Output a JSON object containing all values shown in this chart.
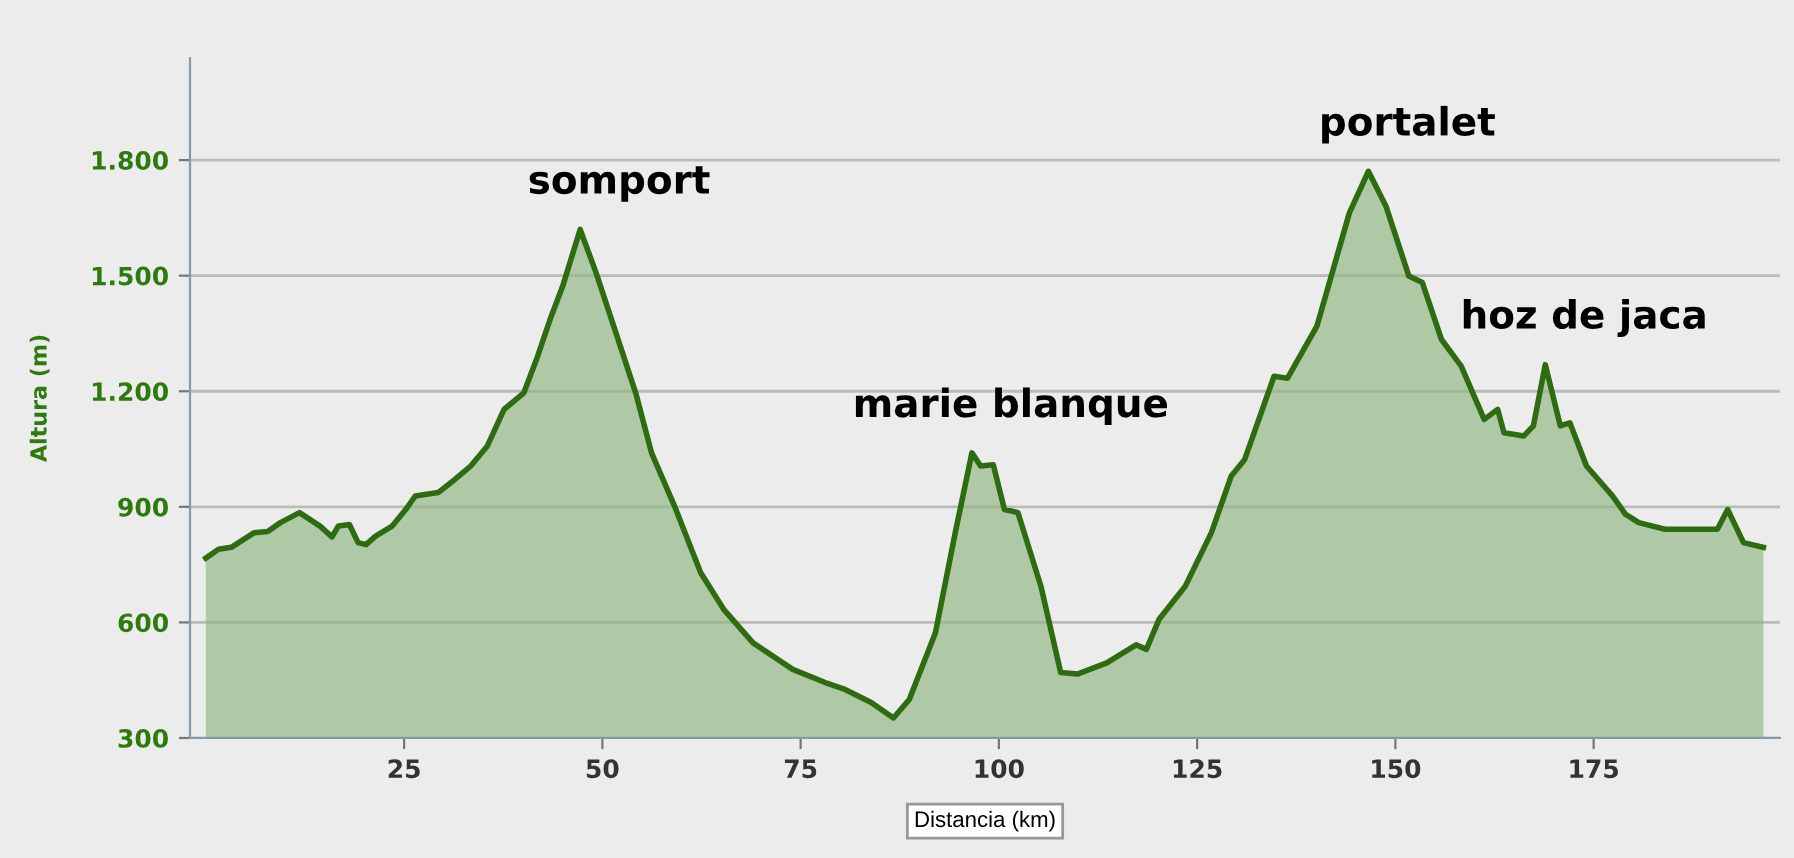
{
  "chart_data": {
    "type": "area",
    "ylabel": "Altura (m)",
    "xlabel": "Distancia (km)",
    "x": [
      0,
      1.6,
      3.2,
      6.1,
      7.8,
      9.4,
      11.8,
      14.4,
      15.9,
      16.7,
      18.1,
      19.2,
      20.2,
      21.4,
      23.5,
      25.2,
      26.4,
      29.3,
      31.4,
      33.4,
      35.5,
      37.6,
      40.1,
      41.7,
      43.4,
      45.0,
      47.2,
      49.2,
      51.7,
      54.2,
      56.2,
      59.1,
      62.4,
      65.3,
      69.0,
      74.0,
      78.1,
      80.6,
      83.9,
      86.7,
      88.7,
      92.0,
      94.5,
      96.6,
      97.7,
      99.3,
      100.7,
      102.4,
      105.3,
      107.8,
      109.9,
      113.6,
      117.3,
      118.6,
      120.2,
      123.5,
      126.8,
      129.3,
      131.0,
      134.7,
      136.4,
      140.1,
      144.2,
      146.6,
      148.8,
      151.7,
      153.4,
      155.8,
      158.3,
      161.2,
      162.9,
      163.7,
      166.2,
      167.4,
      168.9,
      170.8,
      172.0,
      174.1,
      177.4,
      179.0,
      180.7,
      184.0,
      187.3,
      190.6,
      191.9,
      193.9,
      196.4
    ],
    "series": [
      {
        "color": "#2f6b12",
        "values": [
          767,
          790,
          795,
          833,
          836,
          859,
          885,
          850,
          822,
          850,
          854,
          807,
          802,
          824,
          850,
          893,
          928,
          937,
          971,
          1006,
          1058,
          1153,
          1196,
          1283,
          1386,
          1473,
          1620,
          1508,
          1352,
          1196,
          1040,
          902,
          729,
          634,
          547,
          478,
          444,
          426,
          392,
          352,
          400,
          573,
          833,
          1040,
          1006,
          1009,
          893,
          885,
          694,
          470,
          466,
          495,
          542,
          530,
          608,
          694,
          833,
          980,
          1023,
          1239,
          1234,
          1369,
          1663,
          1771,
          1681,
          1499,
          1482,
          1335,
          1265,
          1127,
          1153,
          1092,
          1084,
          1110,
          1269,
          1110,
          1118,
          1006,
          928,
          881,
          859,
          842,
          842,
          842,
          893,
          807,
          795
        ]
      }
    ],
    "xlim": [
      -2,
      198.5
    ],
    "ylim": [
      300,
      2065
    ],
    "xticks": [
      25,
      50,
      75,
      100,
      125,
      150,
      175
    ],
    "yticks": [
      300,
      600,
      900,
      {
        "value": 1200,
        "label": "1.200"
      },
      {
        "value": 1500,
        "label": "1.500"
      },
      {
        "value": 1800,
        "label": "1.800"
      }
    ],
    "grid": "y",
    "annotations": [
      {
        "text": "somport",
        "x": 47.2,
        "y": 1620
      },
      {
        "text": "marie blanque",
        "x": 96.6,
        "y": 1040
      },
      {
        "text": "portalet",
        "x": 146.6,
        "y": 1771
      },
      {
        "text": "hoz de jaca",
        "x": 168.9,
        "y": 1269
      }
    ]
  }
}
